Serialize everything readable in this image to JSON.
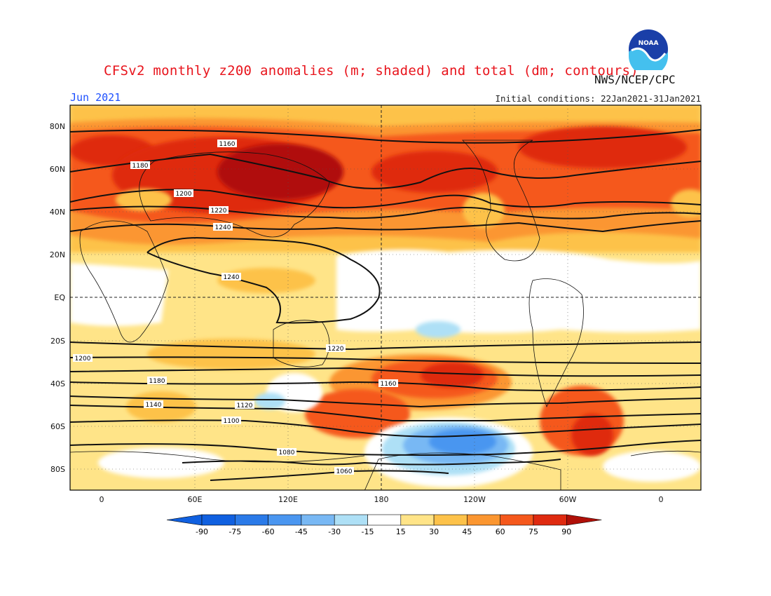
{
  "header": {
    "title": "CFSv2 monthly z200 anomalies (m; shaded) and total (dm; contours)",
    "month": "Jun 2021",
    "initial_conditions": "Initial conditions: 22Jan2021-31Jan2021",
    "agency": "NWS/NCEP/CPC",
    "logo_text": "NOAA"
  },
  "axes": {
    "lat_labels": [
      "80N",
      "60N",
      "40N",
      "20N",
      "EQ",
      "20S",
      "40S",
      "60S",
      "80S"
    ],
    "lon_labels": [
      "0",
      "60E",
      "120E",
      "180",
      "120W",
      "60W",
      "0"
    ]
  },
  "contour_labels": {
    "n1160": "1160",
    "n1180": "1180",
    "n1200": "1200",
    "n1220": "1220",
    "n1240": "1240",
    "s1220": "1220",
    "s1200": "1200",
    "s1180": "1180",
    "s1160": "1160",
    "s1140": "1140",
    "s1120": "1120",
    "s1100": "1100",
    "s1080": "1080",
    "s1060": "1060"
  },
  "colorbar": {
    "ticks": [
      "-90",
      "-75",
      "-60",
      "-45",
      "-30",
      "-15",
      "15",
      "30",
      "45",
      "60",
      "75",
      "90"
    ],
    "colors": [
      "#1060e0",
      "#2a7ae8",
      "#4a96f0",
      "#78b8f4",
      "#aee0f6",
      "#ffffff",
      "#ffe488",
      "#fdc24a",
      "#fb9630",
      "#f5581c",
      "#df2a10",
      "#b01008"
    ],
    "under_color": "#1060e0",
    "over_color": "#b01008"
  }
}
